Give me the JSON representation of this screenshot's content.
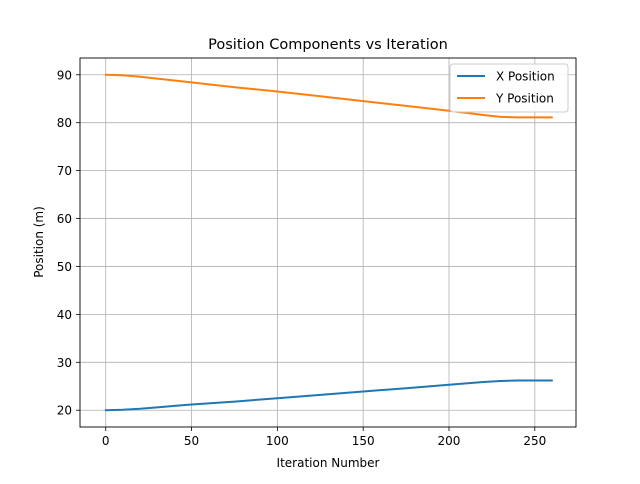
{
  "chart_data": {
    "type": "line",
    "title": "Position Components vs Iteration",
    "xlabel": "Iteration Number",
    "ylabel": "Position (m)",
    "xlim": [
      -15,
      274
    ],
    "ylim": [
      16.5,
      93.5
    ],
    "xticks": [
      0,
      50,
      100,
      150,
      200,
      250
    ],
    "yticks": [
      20,
      30,
      40,
      50,
      60,
      70,
      80,
      90
    ],
    "grid": true,
    "legend_position": "top-right",
    "series": [
      {
        "name": "X Position",
        "color": "#1f77b4",
        "points": [
          [
            0,
            20.0
          ],
          [
            10,
            20.1
          ],
          [
            20,
            20.3
          ],
          [
            30,
            20.6
          ],
          [
            40,
            20.9
          ],
          [
            50,
            21.2
          ],
          [
            75,
            21.8
          ],
          [
            100,
            22.5
          ],
          [
            125,
            23.2
          ],
          [
            150,
            23.9
          ],
          [
            175,
            24.6
          ],
          [
            200,
            25.3
          ],
          [
            220,
            25.9
          ],
          [
            230,
            26.1
          ],
          [
            240,
            26.2
          ],
          [
            250,
            26.2
          ],
          [
            260,
            26.2
          ]
        ]
      },
      {
        "name": "Y Position",
        "color": "#ff7f0e",
        "points": [
          [
            0,
            90.0
          ],
          [
            10,
            89.9
          ],
          [
            20,
            89.6
          ],
          [
            30,
            89.2
          ],
          [
            40,
            88.8
          ],
          [
            50,
            88.4
          ],
          [
            75,
            87.4
          ],
          [
            100,
            86.5
          ],
          [
            125,
            85.5
          ],
          [
            150,
            84.5
          ],
          [
            175,
            83.5
          ],
          [
            200,
            82.5
          ],
          [
            220,
            81.6
          ],
          [
            230,
            81.2
          ],
          [
            240,
            81.1
          ],
          [
            250,
            81.1
          ],
          [
            260,
            81.1
          ]
        ]
      }
    ]
  }
}
